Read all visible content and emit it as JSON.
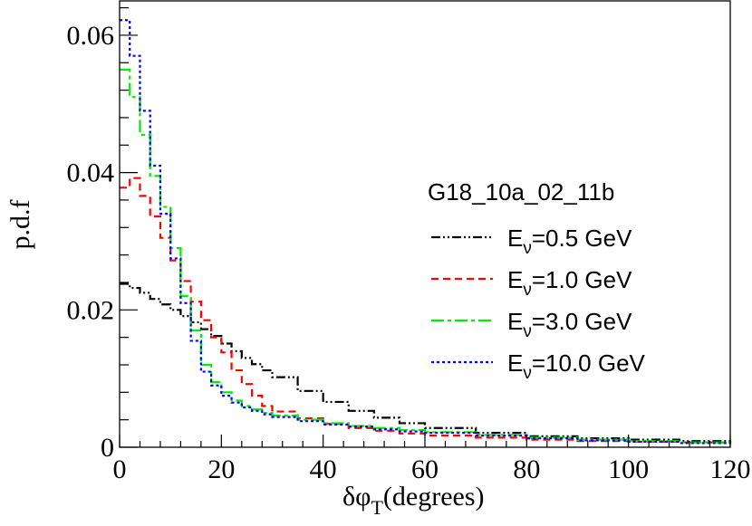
{
  "chart_data": {
    "type": "line",
    "step": true,
    "xlabel": "δφ",
    "xlabel_sub": "T",
    "xlabel_suffix": "(degrees)",
    "ylabel": "p.d.f",
    "xlim": [
      0,
      120
    ],
    "ylim": [
      0,
      0.065
    ],
    "x_ticks": [
      0,
      20,
      40,
      60,
      80,
      100,
      120
    ],
    "x_tick_labels": [
      "0",
      "20",
      "40",
      "60",
      "80",
      "100",
      "120"
    ],
    "y_ticks": [
      0,
      0.02,
      0.04,
      0.06
    ],
    "y_tick_labels": [
      "0",
      "0.02",
      "0.04",
      "0.06"
    ],
    "legend": {
      "title": "G18_10a_02_11b",
      "placement": "right",
      "entries": [
        {
          "prefix": "E",
          "sub": "ν",
          "suffix": "=0.5 GeV"
        },
        {
          "prefix": "E",
          "sub": "ν",
          "suffix": "=1.0 GeV"
        },
        {
          "prefix": "E",
          "sub": "ν",
          "suffix": "=3.0 GeV"
        },
        {
          "prefix": "E",
          "sub": "ν",
          "suffix": "=10.0 GeV"
        }
      ]
    },
    "series": [
      {
        "name": "E_nu=0.5 GeV",
        "color": "#000000",
        "dash": "10 3 2 3 2 3",
        "x": [
          0,
          2,
          4,
          6,
          8,
          10,
          12,
          14,
          16,
          18,
          20,
          22,
          24,
          26,
          28,
          30,
          35,
          40,
          45,
          50,
          55,
          60,
          70,
          80,
          90,
          100,
          110,
          120
        ],
        "values": [
          0.0238,
          0.0232,
          0.0225,
          0.0216,
          0.0208,
          0.02,
          0.0191,
          0.0182,
          0.0172,
          0.0162,
          0.0151,
          0.014,
          0.013,
          0.0121,
          0.0112,
          0.0102,
          0.0082,
          0.0066,
          0.0053,
          0.0043,
          0.0035,
          0.0028,
          0.0021,
          0.0016,
          0.0013,
          0.0011,
          0.0009,
          0.0008
        ]
      },
      {
        "name": "E_nu=1.0 GeV",
        "color": "#ff0000",
        "dash": "8 5",
        "x": [
          0,
          2,
          4,
          6,
          8,
          10,
          12,
          14,
          16,
          18,
          20,
          22,
          24,
          26,
          28,
          30,
          35,
          40,
          45,
          50,
          55,
          60,
          70,
          80,
          90,
          100,
          110,
          120
        ],
        "values": [
          0.0378,
          0.0392,
          0.0366,
          0.0336,
          0.0305,
          0.0272,
          0.0242,
          0.0212,
          0.0185,
          0.016,
          0.0138,
          0.0112,
          0.0092,
          0.0075,
          0.006,
          0.0052,
          0.0042,
          0.0034,
          0.0028,
          0.0024,
          0.002,
          0.0017,
          0.0014,
          0.0011,
          0.0009,
          0.0008,
          0.0007,
          0.0006
        ]
      },
      {
        "name": "E_nu=3.0 GeV",
        "color": "#00ee00",
        "dash": "14 4 4 4",
        "x": [
          0,
          2,
          4,
          6,
          8,
          10,
          12,
          14,
          16,
          18,
          20,
          22,
          24,
          26,
          28,
          30,
          35,
          40,
          45,
          50,
          55,
          60,
          70,
          80,
          90,
          100,
          110,
          120
        ],
        "values": [
          0.055,
          0.051,
          0.0455,
          0.0395,
          0.035,
          0.029,
          0.022,
          0.017,
          0.012,
          0.0095,
          0.008,
          0.0068,
          0.006,
          0.0055,
          0.005,
          0.0046,
          0.004,
          0.0035,
          0.0031,
          0.0028,
          0.0025,
          0.0022,
          0.0018,
          0.0014,
          0.0011,
          0.0009,
          0.0007,
          0.0006
        ]
      },
      {
        "name": "E_nu=10.0 GeV",
        "color": "#0000ff",
        "dash": "3 3",
        "x": [
          0,
          2,
          4,
          6,
          8,
          10,
          12,
          14,
          16,
          18,
          20,
          22,
          24,
          26,
          28,
          30,
          35,
          40,
          45,
          50,
          55,
          60,
          70,
          80,
          90,
          100,
          110,
          120
        ],
        "values": [
          0.0622,
          0.057,
          0.049,
          0.041,
          0.034,
          0.0275,
          0.021,
          0.0155,
          0.011,
          0.009,
          0.0075,
          0.0065,
          0.0058,
          0.0053,
          0.0048,
          0.0044,
          0.0038,
          0.0033,
          0.003,
          0.0026,
          0.0023,
          0.0021,
          0.0017,
          0.0013,
          0.001,
          0.0008,
          0.0006,
          0.0005
        ]
      }
    ]
  }
}
